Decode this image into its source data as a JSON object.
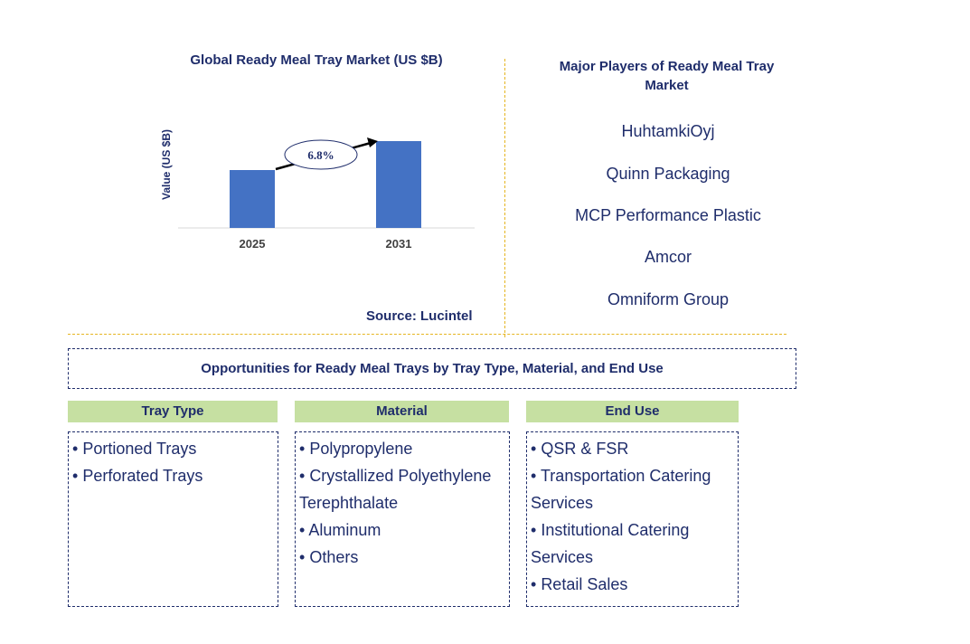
{
  "chart_data": {
    "type": "bar",
    "title": "Global Ready Meal Tray Market (US $B)",
    "ylabel": "Value (US $B)",
    "categories": [
      "2025",
      "2031"
    ],
    "values": [
      1.0,
      1.5
    ],
    "annotation": "6.8%",
    "source": "Source: Lucintel",
    "bar_color": "#4472c4"
  },
  "players": {
    "title": "Major Players of Ready Meal Tray Market",
    "items": [
      "HuhtamkiOyj",
      "Quinn Packaging",
      "MCP Performance Plastic",
      "Amcor",
      "Omniform Group"
    ]
  },
  "opportunities": {
    "title": "Opportunities for Ready Meal Trays by Tray Type, Material, and End Use",
    "segments": [
      {
        "header": "Tray Type",
        "items": [
          "Portioned Trays",
          "Perforated Trays"
        ]
      },
      {
        "header": "Material",
        "items": [
          "Polypropylene",
          "Crystallized Polyethylene Terephthalate",
          "Aluminum",
          "Others"
        ]
      },
      {
        "header": "End Use",
        "items": [
          "QSR & FSR",
          "Transportation Catering Services",
          "Institutional Catering Services",
          "Retail Sales"
        ]
      }
    ]
  },
  "colors": {
    "text": "#1f2d6b",
    "divider": "#e5b521",
    "header_bg": "#c6e0a2"
  }
}
